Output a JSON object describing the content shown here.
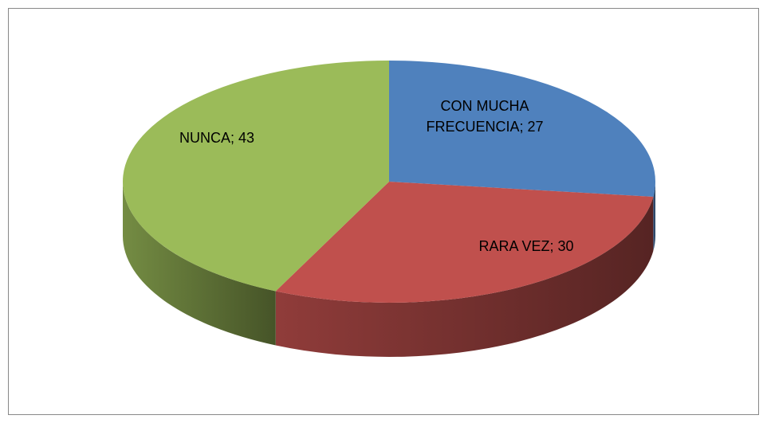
{
  "chart_data": {
    "type": "pie",
    "values": [
      27,
      30,
      43
    ],
    "value_labels": [
      "CON MUCHA FRECUENCIA; 27",
      "RARA VEZ; 30",
      "NUNCA; 43"
    ],
    "colors": [
      "#4f81bd",
      "#c0504d",
      "#9bbb59"
    ]
  }
}
